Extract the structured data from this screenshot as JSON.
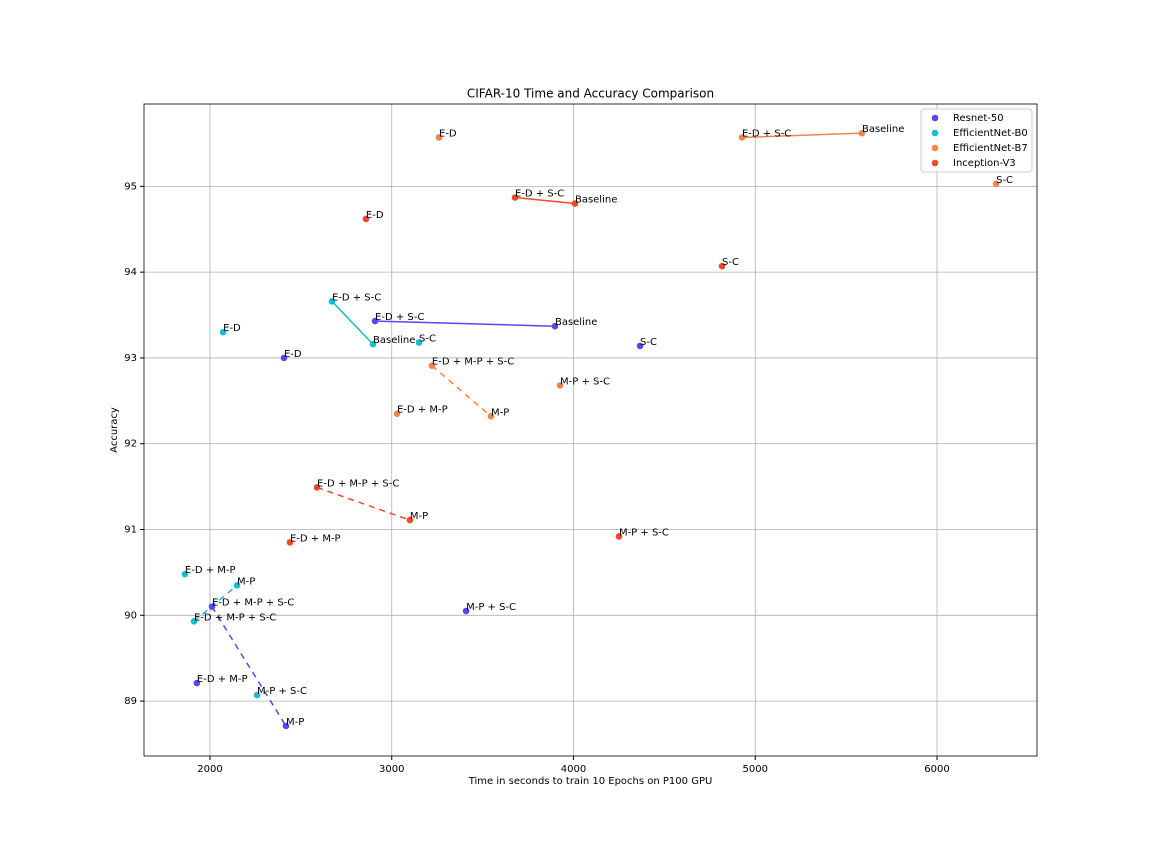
{
  "chart_data": {
    "type": "scatter",
    "title": "CIFAR-10 Time and Accuracy Comparison",
    "x_label": "Time in seconds to train 10 Epochs on P100 GPU",
    "y_label": "Accuracy",
    "xlim": [
      1637,
      6550
    ],
    "ylim": [
      88.36,
      95.96
    ],
    "xticks": [
      2000,
      3000,
      4000,
      5000,
      6000
    ],
    "yticks": [
      89,
      90,
      91,
      92,
      93,
      94,
      95
    ],
    "grid": true,
    "legend": "upper right",
    "series": [
      {
        "name": "Resnet-50",
        "color": "#5a45f2",
        "labels": [
          "E-D",
          "E-D + S-C",
          "Baseline",
          "S-C",
          "M-P + S-C",
          "E-D + M-P + S-C",
          "E-D + M-P",
          "M-P"
        ],
        "x": [
          2407,
          2908,
          3898,
          4366,
          3409,
          2011,
          1928,
          2418
        ],
        "values": [
          93.0,
          93.43,
          93.37,
          93.14,
          90.05,
          90.1,
          89.21,
          88.71
        ],
        "links": [
          {
            "points": [
              1,
              2
            ],
            "style": "solid"
          },
          {
            "points": [
              5,
              7
            ],
            "style": "dashed"
          }
        ]
      },
      {
        "name": "EfficientNet-B0",
        "color": "#17becf",
        "labels": [
          "E-D",
          "E-D + S-C",
          "Baseline",
          "S-C",
          "M-P",
          "E-D + M-P",
          "E-D + M-P + S-C",
          "M-P + S-C"
        ],
        "x": [
          2072,
          2671,
          2897,
          3150,
          2149,
          1862,
          1912,
          2259
        ],
        "values": [
          93.3,
          93.66,
          93.16,
          93.18,
          90.35,
          90.48,
          89.93,
          89.07
        ],
        "links": [
          {
            "points": [
              1,
              2
            ],
            "style": "solid"
          },
          {
            "points": [
              6,
              4
            ],
            "style": "dashed"
          }
        ]
      },
      {
        "name": "EfficientNet-B7",
        "color": "#f5844a",
        "labels": [
          "E-D",
          "E-D + S-C",
          "Baseline",
          "S-C",
          "E-D + M-P + S-C",
          "M-P",
          "M-P + S-C",
          "E-D + M-P"
        ],
        "x": [
          3260,
          4927,
          5587,
          6325,
          3221,
          3546,
          3926,
          3029
        ],
        "values": [
          95.57,
          95.57,
          95.62,
          95.03,
          92.91,
          92.32,
          92.68,
          92.35
        ],
        "links": [
          {
            "points": [
              1,
              2
            ],
            "style": "solid"
          },
          {
            "points": [
              4,
              5
            ],
            "style": "dashed"
          }
        ]
      },
      {
        "name": "Inception-V3",
        "color": "#f2472b",
        "labels": [
          "E-D",
          "E-D + S-C",
          "Baseline",
          "S-C",
          "E-D + M-P + S-C",
          "M-P",
          "M-P + S-C",
          "E-D + M-P"
        ],
        "x": [
          2858,
          3678,
          4008,
          4817,
          2589,
          3100,
          4250,
          2440
        ],
        "values": [
          94.62,
          94.87,
          94.8,
          94.07,
          91.49,
          91.11,
          90.92,
          90.85
        ],
        "links": [
          {
            "points": [
              1,
              2
            ],
            "style": "solid"
          },
          {
            "points": [
              4,
              5
            ],
            "style": "dashed"
          }
        ]
      }
    ]
  }
}
